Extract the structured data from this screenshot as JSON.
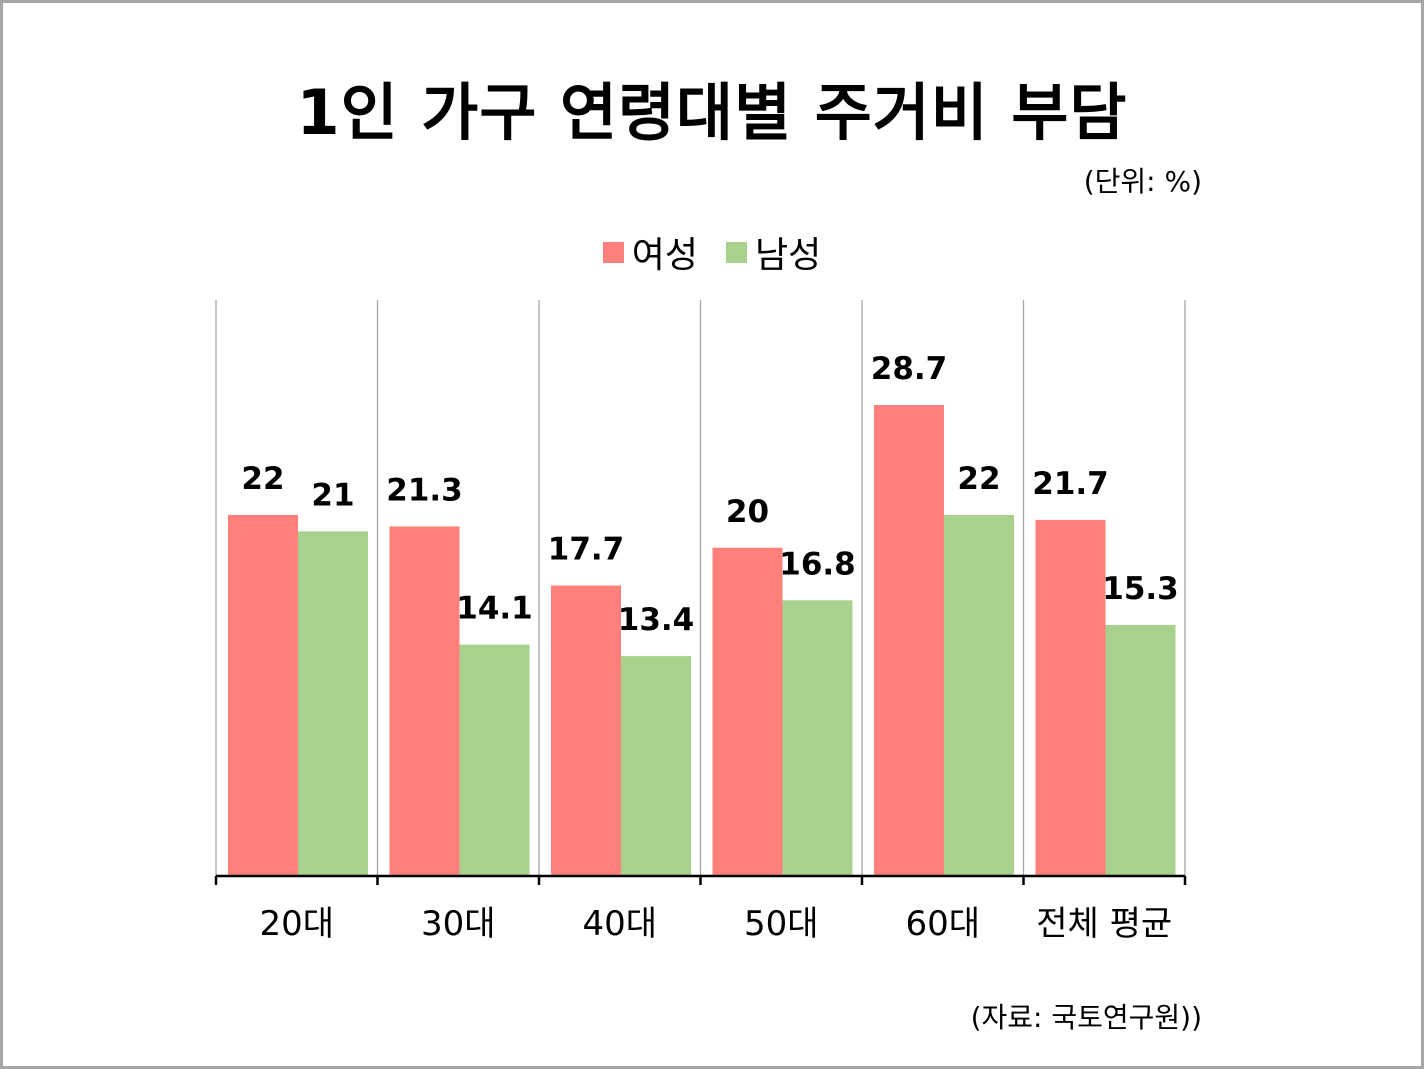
{
  "title": "1인 가구 연령대별 주거비 부담",
  "unit_note": "(단위: %)",
  "source_note": "(자료: 국토연구원))",
  "colors": {
    "female": "#ff7f7a",
    "male": "#a9d18e",
    "gridline": "#a6a6a6",
    "axis": "#000000",
    "frame": "#a6a6a6"
  },
  "chart_data": {
    "type": "bar",
    "title": "1인 가구 연령대별 주거비 부담",
    "categories": [
      "20대",
      "30대",
      "40대",
      "50대",
      "60대",
      "전체 평균"
    ],
    "series": [
      {
        "name": "여성",
        "values": [
          22,
          21.3,
          17.7,
          20,
          28.7,
          21.7
        ]
      },
      {
        "name": "남성",
        "values": [
          21,
          14.1,
          13.4,
          16.8,
          22,
          15.3
        ]
      }
    ],
    "value_labels": [
      [
        "22",
        "21.3",
        "17.7",
        "20",
        "28.7",
        "21.7"
      ],
      [
        "21",
        "14.1",
        "13.4",
        "16.8",
        "22",
        "15.3"
      ]
    ],
    "ylim": [
      0,
      35
    ],
    "grid": "vertical separators between categories",
    "legend_position": "top-center",
    "xlabel": "",
    "ylabel": ""
  }
}
